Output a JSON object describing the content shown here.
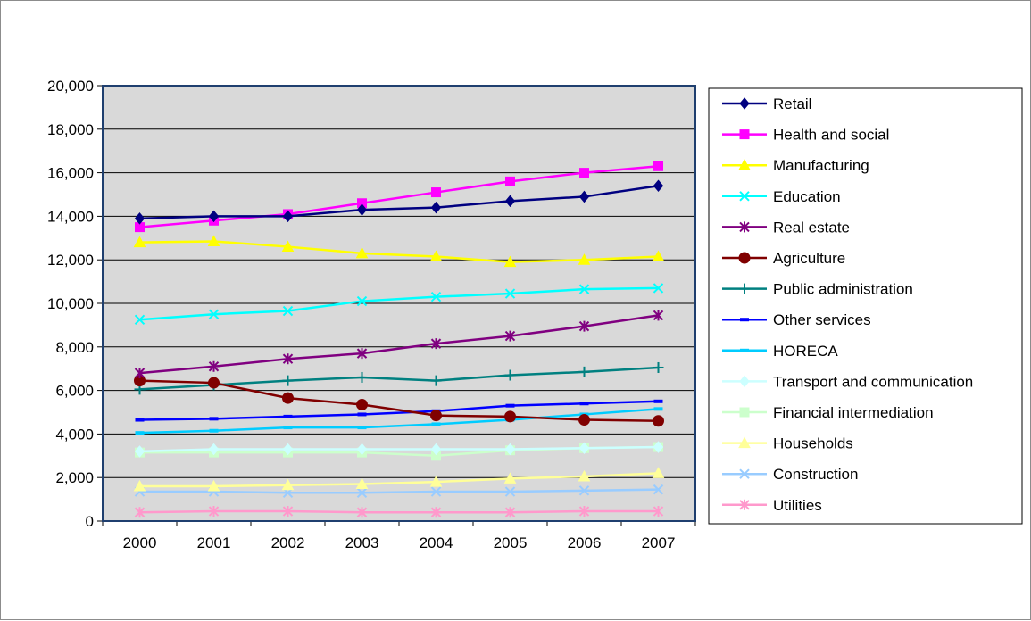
{
  "chart_data": {
    "type": "line",
    "title": "",
    "xlabel": "",
    "ylabel": "",
    "categories": [
      "2000",
      "2001",
      "2002",
      "2003",
      "2004",
      "2005",
      "2006",
      "2007"
    ],
    "ylim": [
      0,
      20000
    ],
    "yticks": [
      0,
      2000,
      4000,
      6000,
      8000,
      10000,
      12000,
      14000,
      16000,
      18000,
      20000
    ],
    "ytick_labels": [
      "0",
      "2,000",
      "4,000",
      "6,000",
      "8,000",
      "10,000",
      "12,000",
      "14,000",
      "16,000",
      "18,000",
      "20,000"
    ],
    "grid": "horizontal",
    "plot_background": "#d9d9d9",
    "legend_position": "right",
    "series": [
      {
        "name": "Retail",
        "color": "#000080",
        "marker": "diamond",
        "values": [
          13900,
          14000,
          14000,
          14300,
          14400,
          14700,
          14900,
          15400
        ]
      },
      {
        "name": "Health and social",
        "color": "#ff00ff",
        "marker": "square",
        "values": [
          13500,
          13800,
          14100,
          14600,
          15100,
          15600,
          16000,
          16300
        ]
      },
      {
        "name": "Manufacturing",
        "color": "#ffff00",
        "marker": "triangle",
        "values": [
          12800,
          12850,
          12600,
          12300,
          12150,
          11900,
          12000,
          12150
        ]
      },
      {
        "name": "Education",
        "color": "#00ffff",
        "marker": "x",
        "values": [
          9250,
          9500,
          9650,
          10100,
          10300,
          10450,
          10650,
          10700
        ]
      },
      {
        "name": "Real estate",
        "color": "#800080",
        "marker": "star",
        "values": [
          6800,
          7100,
          7450,
          7700,
          8150,
          8500,
          8950,
          9450
        ]
      },
      {
        "name": "Agriculture",
        "color": "#800000",
        "marker": "circle",
        "values": [
          6450,
          6350,
          5650,
          5350,
          4850,
          4800,
          4650,
          4600
        ]
      },
      {
        "name": "Public administration",
        "color": "#008080",
        "marker": "plus",
        "values": [
          6050,
          6250,
          6450,
          6600,
          6450,
          6700,
          6850,
          7050
        ]
      },
      {
        "name": "Other services",
        "color": "#0000ff",
        "marker": "dash",
        "values": [
          4650,
          4700,
          4800,
          4900,
          5050,
          5300,
          5400,
          5500
        ]
      },
      {
        "name": "HORECA",
        "color": "#00ccff",
        "marker": "dash",
        "values": [
          4050,
          4150,
          4300,
          4300,
          4450,
          4650,
          4900,
          5150
        ]
      },
      {
        "name": "Transport and communication",
        "color": "#ccffff",
        "marker": "diamond",
        "values": [
          3200,
          3300,
          3300,
          3300,
          3300,
          3300,
          3350,
          3400
        ]
      },
      {
        "name": "Financial intermediation",
        "color": "#ccffcc",
        "marker": "square",
        "values": [
          3150,
          3150,
          3150,
          3150,
          3000,
          3250,
          3350,
          3400
        ]
      },
      {
        "name": "Households",
        "color": "#ffff99",
        "marker": "triangle",
        "values": [
          1600,
          1600,
          1650,
          1700,
          1800,
          1950,
          2050,
          2200
        ]
      },
      {
        "name": "Construction",
        "color": "#99ccff",
        "marker": "x",
        "values": [
          1350,
          1350,
          1300,
          1300,
          1350,
          1350,
          1400,
          1450
        ]
      },
      {
        "name": "Utilities",
        "color": "#ff99cc",
        "marker": "star",
        "values": [
          400,
          450,
          450,
          400,
          400,
          400,
          450,
          450
        ]
      }
    ]
  }
}
